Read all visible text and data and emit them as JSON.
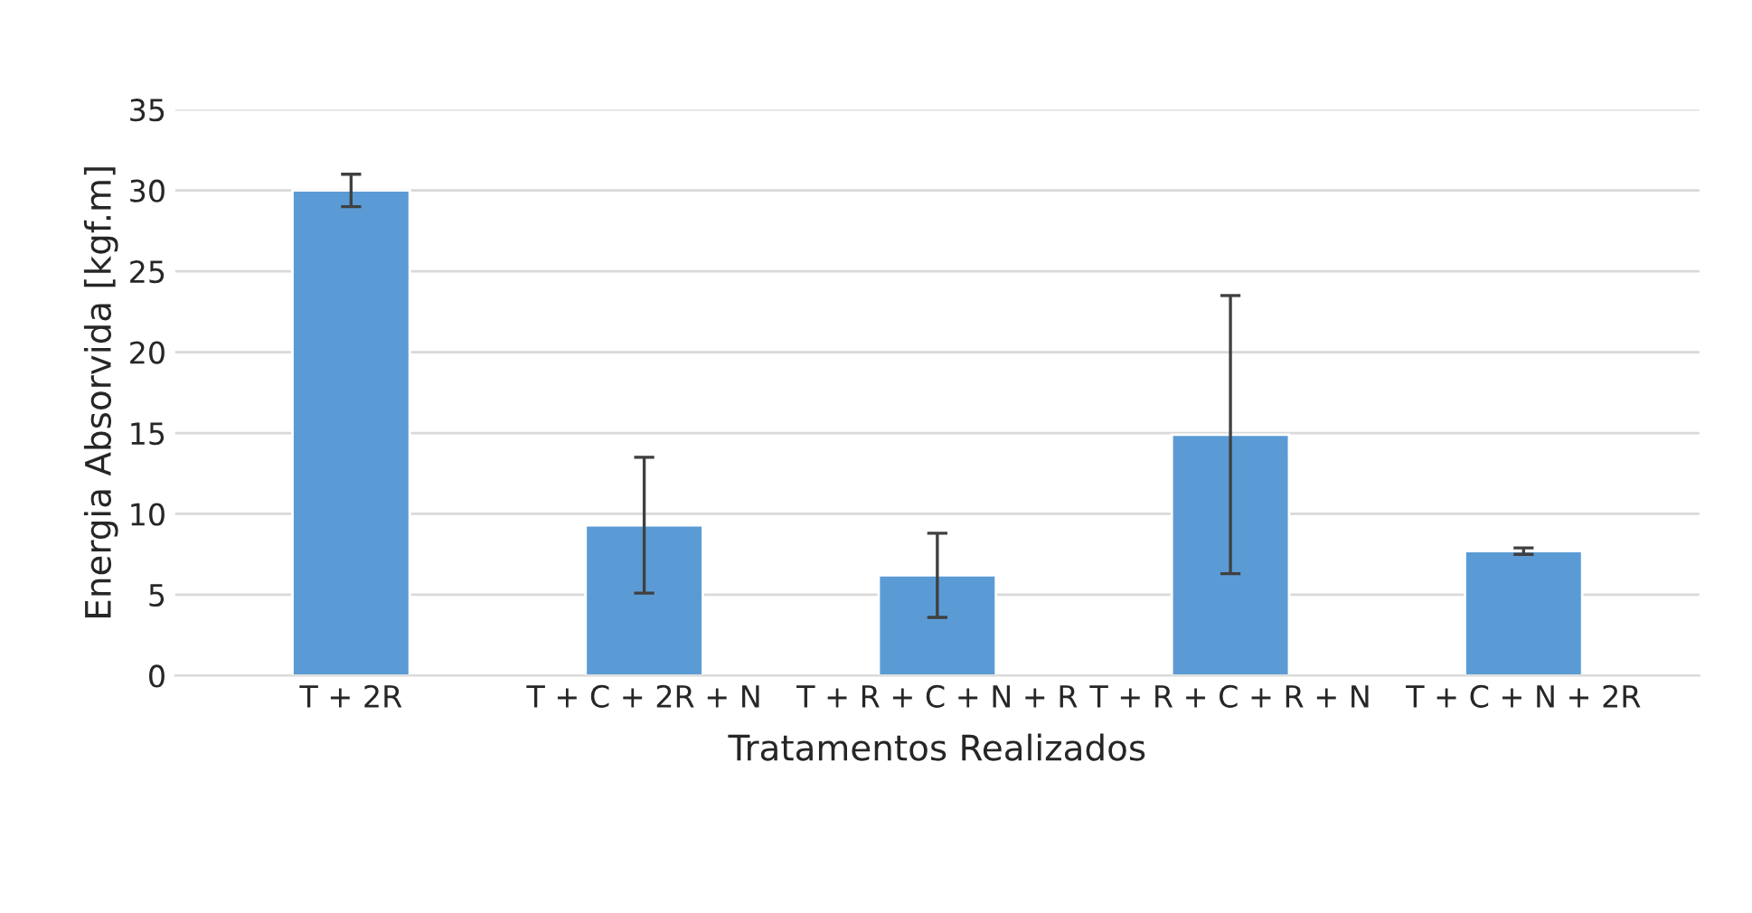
{
  "chart_data": {
    "type": "bar",
    "xlabel": "Tratamentos Realizados",
    "ylabel": "Energia Absorvida [kgf.m]",
    "categories": [
      "T + 2R",
      "T + C + 2R + N",
      "T + R + C + N + R",
      "T + R + C + R + N",
      "T + C + N + 2R"
    ],
    "values": [
      30.0,
      9.3,
      6.2,
      14.9,
      7.7
    ],
    "errors": [
      1.0,
      4.2,
      2.6,
      8.6,
      0.2
    ],
    "color": "#5b9bd5",
    "ylim": [
      0,
      35
    ],
    "yticks": [
      0,
      5,
      10,
      15,
      20,
      25,
      30,
      35
    ],
    "grid": "y"
  }
}
